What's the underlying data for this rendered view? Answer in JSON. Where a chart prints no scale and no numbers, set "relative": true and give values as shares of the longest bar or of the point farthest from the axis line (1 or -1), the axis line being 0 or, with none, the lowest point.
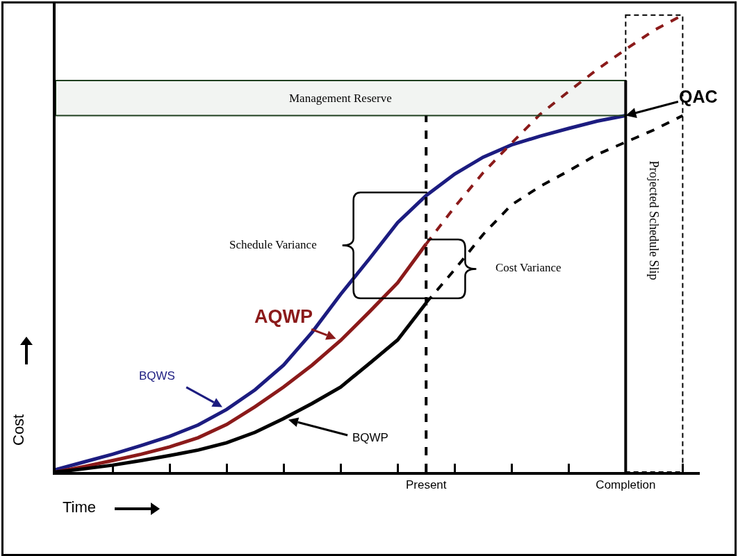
{
  "chart_data": {
    "type": "line",
    "relative": true,
    "xlabel": "Time",
    "ylabel": "Cost",
    "categories": [
      null,
      null,
      null,
      null,
      null,
      null,
      null,
      null,
      null,
      null,
      null,
      null,
      null,
      "Present",
      null,
      null,
      null,
      null,
      null,
      null,
      "Completion",
      null,
      null
    ],
    "series": [
      {
        "name": "BQWS",
        "color": "#1c1c80",
        "line_style": "solid",
        "values": [
          0.005,
          0.022,
          0.039,
          0.058,
          0.078,
          0.103,
          0.137,
          0.18,
          0.234,
          0.306,
          0.389,
          0.466,
          0.546,
          0.605,
          0.652,
          0.689,
          0.716,
          0.735,
          0.752,
          0.768,
          0.78,
          null,
          null
        ]
      },
      {
        "name": "AQWP",
        "color": "#8b1a1a",
        "line_style": "solid",
        "values": [
          0,
          0.012,
          0.025,
          0.039,
          0.055,
          0.075,
          0.104,
          0.143,
          0.186,
          0.234,
          0.288,
          0.35,
          0.414,
          0.499,
          null,
          null,
          null,
          null,
          null,
          null,
          null,
          null,
          null
        ]
      },
      {
        "color": "#8b1a1a",
        "line_style": "dashed",
        "values": [
          null,
          null,
          null,
          null,
          null,
          null,
          null,
          null,
          null,
          null,
          null,
          null,
          null,
          0.499,
          0.58,
          0.655,
          0.72,
          0.783,
          0.833,
          0.881,
          0.925,
          0.967,
          1.0
        ]
      },
      {
        "name": "BQWP",
        "color": "#000000",
        "line_style": "solid",
        "values": [
          0,
          0.007,
          0.015,
          0.025,
          0.036,
          0.048,
          0.064,
          0.087,
          0.117,
          0.15,
          0.186,
          0.237,
          0.289,
          0.37,
          null,
          null,
          null,
          null,
          null,
          null,
          null,
          null,
          null
        ]
      },
      {
        "color": "#000000",
        "line_style": "dashed",
        "values": [
          null,
          null,
          null,
          null,
          null,
          null,
          null,
          null,
          null,
          null,
          null,
          null,
          null,
          0.37,
          0.443,
          0.52,
          0.585,
          0.625,
          0.659,
          0.695,
          0.722,
          0.749,
          0.78
        ]
      }
    ],
    "bands": [
      {
        "axis": "y",
        "from": 0.78,
        "to": 0.857,
        "label": "Management Reserve",
        "color": "#1f3f1f"
      }
    ],
    "ref_lines": [
      {
        "axis": "x",
        "value": "Present",
        "line_style": "dashed",
        "color": "#000000"
      },
      {
        "axis": "x",
        "value": "Completion",
        "line_style": "solid",
        "color": "#000000"
      }
    ],
    "annotations": [
      "Schedule Variance",
      "Cost Variance",
      "Projected Schedule Slip",
      {
        "text": "QAC",
        "x": "Completion",
        "y": 0.78
      }
    ],
    "legend": false,
    "grid": false,
    "marker": "none"
  }
}
